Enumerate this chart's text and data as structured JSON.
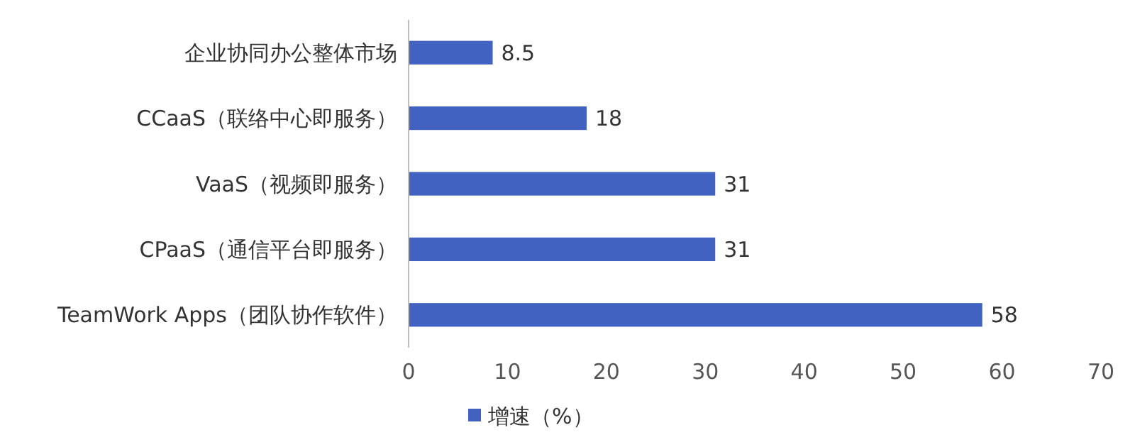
{
  "chart_data": {
    "type": "bar",
    "orientation": "horizontal",
    "categories": [
      "企业协同办公整体市场",
      "CCaaS（联络中心即服务）",
      "VaaS（视频即服务）",
      "CPaaS（通信平台即服务）",
      "TeamWork Apps（团队协作软件）"
    ],
    "series": [
      {
        "name": "增速（%）",
        "color": "#4262c2",
        "values": [
          8.5,
          18,
          31,
          31,
          58
        ]
      }
    ],
    "xlim": [
      0,
      70
    ],
    "xticks": [
      0,
      10,
      20,
      30,
      40,
      50,
      60,
      70
    ],
    "data_labels": true,
    "grid": false,
    "legend": "bottom"
  }
}
